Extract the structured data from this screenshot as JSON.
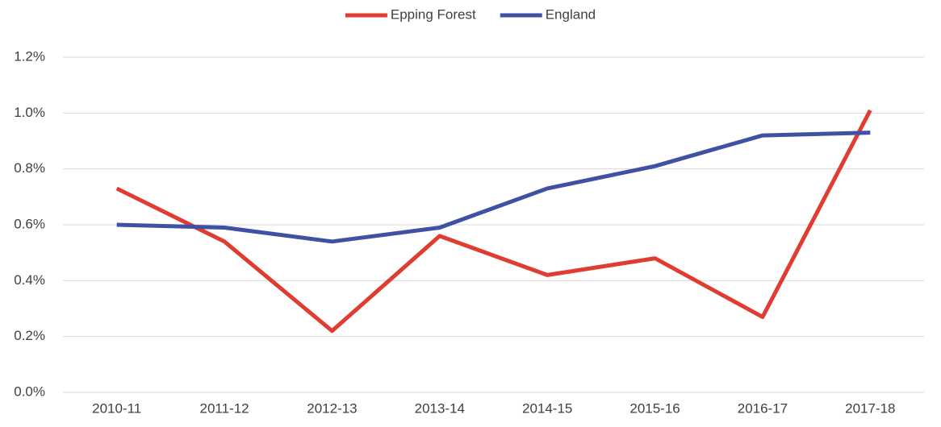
{
  "chart_data": {
    "type": "line",
    "categories": [
      "2010-11",
      "2011-12",
      "2012-13",
      "2013-14",
      "2014-15",
      "2015-16",
      "2016-17",
      "2017-18"
    ],
    "series": [
      {
        "name": "Epping Forest",
        "color": "#e03c31",
        "values": [
          0.73,
          0.54,
          0.22,
          0.56,
          0.42,
          0.48,
          0.27,
          1.01
        ]
      },
      {
        "name": "England",
        "color": "#3f51a3",
        "values": [
          0.6,
          0.59,
          0.54,
          0.59,
          0.73,
          0.81,
          0.92,
          0.93
        ]
      }
    ],
    "ylim": [
      0,
      1.2
    ],
    "yticks": [
      {
        "value": 0,
        "label": "0.0%"
      },
      {
        "value": 0.2,
        "label": "0.2%"
      },
      {
        "value": 0.4,
        "label": "0.4%"
      },
      {
        "value": 0.6,
        "label": "0.6%"
      },
      {
        "value": 0.8,
        "label": "0.8%"
      },
      {
        "value": 1.0,
        "label": "1.0%"
      },
      {
        "value": 1.2,
        "label": "1.2%"
      }
    ],
    "grid": true,
    "legend": "top"
  }
}
